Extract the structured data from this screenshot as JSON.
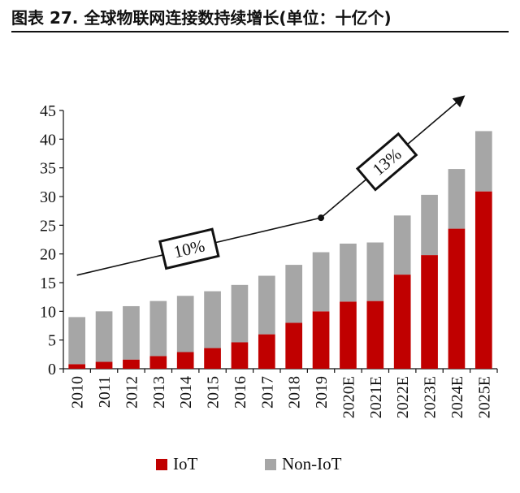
{
  "title": "图表 27. 全球物联网连接数持续增长(单位：十亿个)",
  "chart_data": {
    "type": "bar",
    "stacked": true,
    "categories": [
      "2010",
      "2011",
      "2012",
      "2013",
      "2014",
      "2015",
      "2016",
      "2017",
      "2018",
      "2019",
      "2020E",
      "2021E",
      "2022E",
      "2023E",
      "2024E",
      "2025E"
    ],
    "series": [
      {
        "name": "IoT",
        "color": "#c00000",
        "values": [
          0.8,
          1.2,
          1.6,
          2.2,
          2.9,
          3.6,
          4.6,
          6.0,
          8.0,
          10.0,
          11.7,
          11.8,
          16.4,
          19.8,
          24.4,
          30.9
        ]
      },
      {
        "name": "Non-IoT",
        "color": "#a6a6a6",
        "values": [
          8.2,
          8.8,
          9.3,
          9.6,
          9.8,
          9.9,
          10.0,
          10.2,
          10.1,
          10.3,
          10.1,
          10.2,
          10.3,
          10.5,
          10.4,
          10.5
        ]
      }
    ],
    "ylim": [
      0,
      45
    ],
    "yticks": [
      0,
      5,
      10,
      15,
      20,
      25,
      30,
      35,
      40,
      45
    ],
    "grid": false,
    "legend": "bottom",
    "annotations": [
      {
        "label": "10%",
        "from_category": "2010",
        "to_category": "2019",
        "from_value": 16.3,
        "to_value": 26.3
      },
      {
        "label": "13%",
        "from_category": "2019",
        "to_category": "2025E",
        "from_value": 26.3,
        "to_value": 47.5
      }
    ]
  }
}
